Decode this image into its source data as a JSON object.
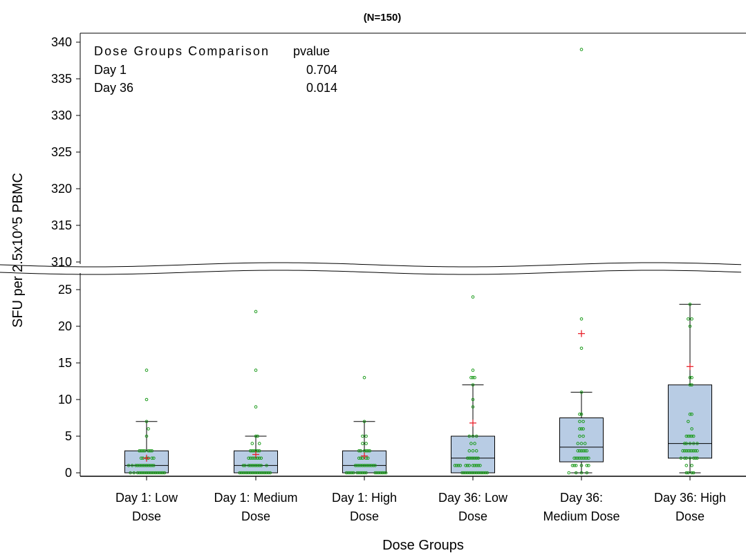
{
  "chart_data": {
    "type": "box",
    "subtitle": "(N=150)",
    "xlabel": "Dose Groups",
    "ylabel": "SFU per 2.5x10^5 PBMC",
    "y_lower_ticks": [
      0,
      5,
      10,
      15,
      20,
      25
    ],
    "y_upper_ticks": [
      310,
      315,
      320,
      325,
      330,
      335,
      340
    ],
    "y_lower_range": [
      0,
      25
    ],
    "y_upper_range": [
      310,
      340
    ],
    "axis_break": true,
    "inset_table": {
      "header": [
        "Dose Groups Comparison",
        "pvalue"
      ],
      "rows": [
        [
          "Day 1",
          "0.704"
        ],
        [
          "Day 36",
          "0.014"
        ]
      ]
    },
    "categories": [
      {
        "lines": [
          "Day 1: Low",
          "Dose"
        ],
        "q1": 0,
        "median": 1,
        "q3": 3,
        "whisker_low": 0,
        "whisker_high": 7,
        "mean": 2,
        "points": [
          [
            -0.5,
            1
          ],
          [
            -0.45,
            0
          ],
          [
            -0.4,
            1
          ],
          [
            -0.35,
            0
          ],
          [
            -0.3,
            1
          ],
          [
            -0.25,
            0
          ],
          [
            -0.2,
            0
          ],
          [
            -0.15,
            0
          ],
          [
            -0.1,
            0
          ],
          [
            -0.05,
            0
          ],
          [
            0,
            0
          ],
          [
            0.05,
            0
          ],
          [
            0.1,
            0
          ],
          [
            0.15,
            0
          ],
          [
            0.2,
            0
          ],
          [
            0.25,
            0
          ],
          [
            0.3,
            0
          ],
          [
            0.35,
            0
          ],
          [
            0.4,
            0
          ],
          [
            0.45,
            0
          ],
          [
            0.5,
            0
          ],
          [
            -0.25,
            1
          ],
          [
            -0.2,
            1
          ],
          [
            -0.15,
            1
          ],
          [
            -0.1,
            1
          ],
          [
            -0.05,
            1
          ],
          [
            0,
            1
          ],
          [
            0.05,
            1
          ],
          [
            0.1,
            1
          ],
          [
            0.15,
            1
          ],
          [
            0.2,
            1
          ],
          [
            -0.15,
            2
          ],
          [
            -0.1,
            2
          ],
          [
            0,
            2
          ],
          [
            0.05,
            2
          ],
          [
            0.15,
            2
          ],
          [
            0.2,
            2
          ],
          [
            -0.2,
            3
          ],
          [
            -0.15,
            3
          ],
          [
            -0.1,
            3
          ],
          [
            -0.05,
            3
          ],
          [
            0.05,
            3
          ],
          [
            0.1,
            3
          ],
          [
            0.15,
            3
          ],
          [
            0,
            5
          ],
          [
            0.05,
            6
          ],
          [
            0,
            7
          ],
          [
            0,
            10
          ],
          [
            0,
            14
          ]
        ]
      },
      {
        "lines": [
          "Day 1: Medium",
          "Dose"
        ],
        "q1": 0,
        "median": 1,
        "q3": 3,
        "whisker_low": 0,
        "whisker_high": 5,
        "mean": 2.5,
        "points": [
          [
            -0.45,
            0
          ],
          [
            -0.4,
            0
          ],
          [
            -0.35,
            0
          ],
          [
            -0.3,
            0
          ],
          [
            -0.25,
            0
          ],
          [
            -0.2,
            0
          ],
          [
            -0.15,
            0
          ],
          [
            -0.1,
            0
          ],
          [
            -0.05,
            0
          ],
          [
            0,
            0
          ],
          [
            0.05,
            0
          ],
          [
            0.1,
            0
          ],
          [
            0.15,
            0
          ],
          [
            0.2,
            0
          ],
          [
            0.25,
            0
          ],
          [
            0.3,
            0
          ],
          [
            0.35,
            0
          ],
          [
            0.4,
            0
          ],
          [
            -0.35,
            1
          ],
          [
            -0.3,
            1
          ],
          [
            -0.2,
            1
          ],
          [
            -0.15,
            1
          ],
          [
            -0.1,
            1
          ],
          [
            -0.05,
            1
          ],
          [
            0,
            1
          ],
          [
            0.05,
            1
          ],
          [
            0.1,
            1
          ],
          [
            0.15,
            1
          ],
          [
            0.3,
            1
          ],
          [
            -0.2,
            2
          ],
          [
            -0.15,
            2
          ],
          [
            -0.1,
            2
          ],
          [
            -0.05,
            2
          ],
          [
            0,
            2
          ],
          [
            0.05,
            2
          ],
          [
            0.1,
            2
          ],
          [
            0.15,
            2
          ],
          [
            -0.15,
            3
          ],
          [
            -0.1,
            3
          ],
          [
            -0.05,
            3
          ],
          [
            0,
            3
          ],
          [
            0.05,
            3
          ],
          [
            0.1,
            3
          ],
          [
            -0.1,
            4
          ],
          [
            0.1,
            4
          ],
          [
            0,
            5
          ],
          [
            0.05,
            5
          ],
          [
            0,
            9
          ],
          [
            0,
            14
          ],
          [
            0,
            22
          ]
        ]
      },
      {
        "lines": [
          "Day 1: High",
          "Dose"
        ],
        "q1": 0,
        "median": 1,
        "q3": 3,
        "whisker_low": 0,
        "whisker_high": 7,
        "mean": 2.3,
        "points": [
          [
            -0.5,
            0
          ],
          [
            -0.45,
            0
          ],
          [
            -0.4,
            0
          ],
          [
            -0.35,
            0
          ],
          [
            -0.3,
            0
          ],
          [
            -0.2,
            0
          ],
          [
            -0.15,
            0
          ],
          [
            -0.1,
            0
          ],
          [
            -0.05,
            0
          ],
          [
            0,
            0
          ],
          [
            0.05,
            0
          ],
          [
            0.3,
            0
          ],
          [
            0.35,
            0
          ],
          [
            0.4,
            0
          ],
          [
            0.45,
            0
          ],
          [
            0.5,
            0
          ],
          [
            0.55,
            0
          ],
          [
            0.6,
            0
          ],
          [
            -0.25,
            1
          ],
          [
            -0.2,
            1
          ],
          [
            -0.15,
            1
          ],
          [
            -0.1,
            1
          ],
          [
            -0.05,
            1
          ],
          [
            0,
            1
          ],
          [
            0.05,
            1
          ],
          [
            0.1,
            1
          ],
          [
            0.15,
            1
          ],
          [
            0.2,
            1
          ],
          [
            0.25,
            1
          ],
          [
            0.3,
            1
          ],
          [
            -0.15,
            2
          ],
          [
            -0.1,
            2
          ],
          [
            -0.05,
            2
          ],
          [
            0.05,
            2
          ],
          [
            0.1,
            2
          ],
          [
            -0.15,
            3
          ],
          [
            -0.1,
            3
          ],
          [
            0,
            3
          ],
          [
            0.05,
            3
          ],
          [
            0.1,
            3
          ],
          [
            0.15,
            3
          ],
          [
            -0.05,
            4
          ],
          [
            0.05,
            4
          ],
          [
            -0.05,
            5
          ],
          [
            0.05,
            5
          ],
          [
            0,
            7
          ],
          [
            0,
            13
          ]
        ]
      },
      {
        "lines": [
          "Day 36: Low",
          "Dose"
        ],
        "q1": 0,
        "median": 2,
        "q3": 5,
        "whisker_low": 0,
        "whisker_high": 12,
        "mean": 6.8,
        "points": [
          [
            -0.5,
            1
          ],
          [
            -0.45,
            1
          ],
          [
            -0.4,
            1
          ],
          [
            -0.35,
            1
          ],
          [
            -0.3,
            0
          ],
          [
            -0.25,
            0
          ],
          [
            -0.2,
            0
          ],
          [
            -0.15,
            0
          ],
          [
            -0.1,
            0
          ],
          [
            -0.05,
            0
          ],
          [
            0,
            0
          ],
          [
            0.05,
            0
          ],
          [
            0.1,
            0
          ],
          [
            0.15,
            0
          ],
          [
            0.2,
            0
          ],
          [
            0.25,
            0
          ],
          [
            0.3,
            0
          ],
          [
            0.35,
            0
          ],
          [
            0.4,
            0
          ],
          [
            -0.2,
            1
          ],
          [
            -0.15,
            1
          ],
          [
            -0.1,
            1
          ],
          [
            0,
            1
          ],
          [
            0.05,
            1
          ],
          [
            0.1,
            1
          ],
          [
            0.15,
            1
          ],
          [
            0.2,
            1
          ],
          [
            -0.15,
            2
          ],
          [
            -0.1,
            2
          ],
          [
            -0.05,
            2
          ],
          [
            0,
            2
          ],
          [
            0.05,
            2
          ],
          [
            0.1,
            2
          ],
          [
            0.15,
            2
          ],
          [
            -0.1,
            3
          ],
          [
            0,
            3
          ],
          [
            0.1,
            3
          ],
          [
            -0.05,
            4
          ],
          [
            0.05,
            4
          ],
          [
            -0.1,
            5
          ],
          [
            0,
            5
          ],
          [
            0.1,
            5
          ],
          [
            0,
            9
          ],
          [
            0,
            10
          ],
          [
            0,
            12
          ],
          [
            -0.05,
            13
          ],
          [
            0,
            13
          ],
          [
            0.05,
            13
          ],
          [
            0,
            14
          ],
          [
            0,
            24
          ]
        ]
      },
      {
        "lines": [
          "Day 36:",
          "Medium Dose"
        ],
        "q1": 1.5,
        "median": 3.5,
        "q3": 7.5,
        "whisker_low": 0,
        "whisker_high": 11,
        "mean": 19,
        "points": [
          [
            -0.35,
            0
          ],
          [
            -0.15,
            0
          ],
          [
            0,
            0
          ],
          [
            0.15,
            0
          ],
          [
            -0.25,
            1
          ],
          [
            -0.2,
            1
          ],
          [
            -0.15,
            1
          ],
          [
            0,
            1
          ],
          [
            0.15,
            1
          ],
          [
            0.2,
            1
          ],
          [
            -0.2,
            2
          ],
          [
            -0.15,
            2
          ],
          [
            -0.1,
            2
          ],
          [
            -0.05,
            2
          ],
          [
            0,
            2
          ],
          [
            0.05,
            2
          ],
          [
            0.1,
            2
          ],
          [
            0.15,
            2
          ],
          [
            0.2,
            2
          ],
          [
            -0.1,
            3
          ],
          [
            -0.05,
            3
          ],
          [
            0,
            3
          ],
          [
            0.05,
            3
          ],
          [
            0.1,
            3
          ],
          [
            0.15,
            3
          ],
          [
            -0.1,
            4
          ],
          [
            0,
            4
          ],
          [
            0.1,
            4
          ],
          [
            -0.05,
            5
          ],
          [
            0.05,
            5
          ],
          [
            -0.05,
            6
          ],
          [
            0,
            6
          ],
          [
            0.05,
            6
          ],
          [
            -0.05,
            7
          ],
          [
            0.05,
            7
          ],
          [
            -0.05,
            8
          ],
          [
            0,
            8
          ],
          [
            0,
            11
          ],
          [
            0,
            17
          ],
          [
            0,
            21
          ],
          [
            0,
            339
          ]
        ]
      },
      {
        "lines": [
          "Day 36: High",
          "Dose"
        ],
        "q1": 2,
        "median": 4,
        "q3": 12,
        "whisker_low": 0,
        "whisker_high": 23,
        "mean": 14.5,
        "points": [
          [
            -0.1,
            0
          ],
          [
            -0.05,
            0
          ],
          [
            0.05,
            0
          ],
          [
            0.1,
            0
          ],
          [
            -0.1,
            1
          ],
          [
            0.05,
            1
          ],
          [
            -0.25,
            2
          ],
          [
            -0.15,
            2
          ],
          [
            -0.1,
            2
          ],
          [
            0,
            2
          ],
          [
            0.1,
            2
          ],
          [
            0.15,
            2
          ],
          [
            0.2,
            2
          ],
          [
            -0.2,
            3
          ],
          [
            -0.15,
            3
          ],
          [
            -0.1,
            3
          ],
          [
            -0.05,
            3
          ],
          [
            0,
            3
          ],
          [
            0.05,
            3
          ],
          [
            0.1,
            3
          ],
          [
            0.15,
            3
          ],
          [
            0.2,
            3
          ],
          [
            -0.15,
            4
          ],
          [
            -0.1,
            4
          ],
          [
            0,
            4
          ],
          [
            0.1,
            4
          ],
          [
            0.2,
            4
          ],
          [
            -0.1,
            5
          ],
          [
            -0.05,
            5
          ],
          [
            0,
            5
          ],
          [
            0.05,
            5
          ],
          [
            0.1,
            5
          ],
          [
            0.05,
            6
          ],
          [
            -0.05,
            7
          ],
          [
            0,
            8
          ],
          [
            0.05,
            8
          ],
          [
            0,
            12
          ],
          [
            0.05,
            12
          ],
          [
            0,
            13
          ],
          [
            0.05,
            13
          ],
          [
            0,
            20
          ],
          [
            -0.05,
            21
          ],
          [
            0.05,
            21
          ],
          [
            0,
            23
          ]
        ]
      }
    ]
  }
}
